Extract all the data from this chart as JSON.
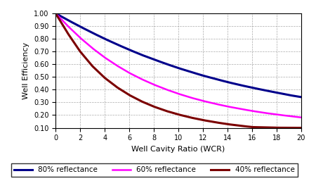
{
  "title": "",
  "xlabel": "Well Cavity Ratio (WCR)",
  "ylabel": "Well Efficiency",
  "xlim": [
    0,
    20
  ],
  "ylim": [
    0.1,
    1.0
  ],
  "yticks": [
    0.1,
    0.2,
    0.3,
    0.4,
    0.5,
    0.6,
    0.7,
    0.8,
    0.9,
    1.0
  ],
  "xticks": [
    0,
    2,
    4,
    6,
    8,
    10,
    12,
    14,
    16,
    18,
    20
  ],
  "curves": [
    {
      "label": "80% reflectance",
      "color": "#00008B",
      "linewidth": 2.2,
      "wcr": [
        0,
        1,
        2,
        3,
        4,
        5,
        6,
        7,
        8,
        9,
        10,
        11,
        12,
        13,
        14,
        15,
        16,
        17,
        18,
        19,
        20
      ],
      "eff": [
        1.0,
        0.947,
        0.896,
        0.847,
        0.8,
        0.756,
        0.714,
        0.674,
        0.638,
        0.603,
        0.57,
        0.54,
        0.511,
        0.485,
        0.46,
        0.437,
        0.416,
        0.396,
        0.377,
        0.358,
        0.342
      ]
    },
    {
      "label": "60% reflectance",
      "color": "#FF00FF",
      "linewidth": 1.8,
      "wcr": [
        0,
        1,
        2,
        3,
        4,
        5,
        6,
        7,
        8,
        9,
        10,
        11,
        12,
        13,
        14,
        15,
        16,
        17,
        18,
        19,
        20
      ],
      "eff": [
        1.0,
        0.9,
        0.808,
        0.726,
        0.653,
        0.589,
        0.532,
        0.483,
        0.44,
        0.402,
        0.368,
        0.338,
        0.312,
        0.289,
        0.268,
        0.25,
        0.233,
        0.218,
        0.205,
        0.193,
        0.182
      ]
    },
    {
      "label": "40% reflectance",
      "color": "#7B0000",
      "linewidth": 2.2,
      "wcr": [
        0,
        1,
        2,
        3,
        4,
        5,
        6,
        7,
        8,
        9,
        10,
        11,
        12,
        13,
        14,
        15,
        16,
        17,
        18,
        19,
        20
      ],
      "eff": [
        1.0,
        0.842,
        0.7,
        0.585,
        0.493,
        0.419,
        0.358,
        0.308,
        0.267,
        0.233,
        0.205,
        0.181,
        0.161,
        0.144,
        0.129,
        0.117,
        0.106,
        0.1035,
        0.101,
        0.1005,
        0.1
      ]
    }
  ],
  "background_color": "#FFFFFF",
  "grid_color": "#888888",
  "legend_fontsize": 7.5,
  "axis_label_fontsize": 8,
  "tick_fontsize": 7
}
